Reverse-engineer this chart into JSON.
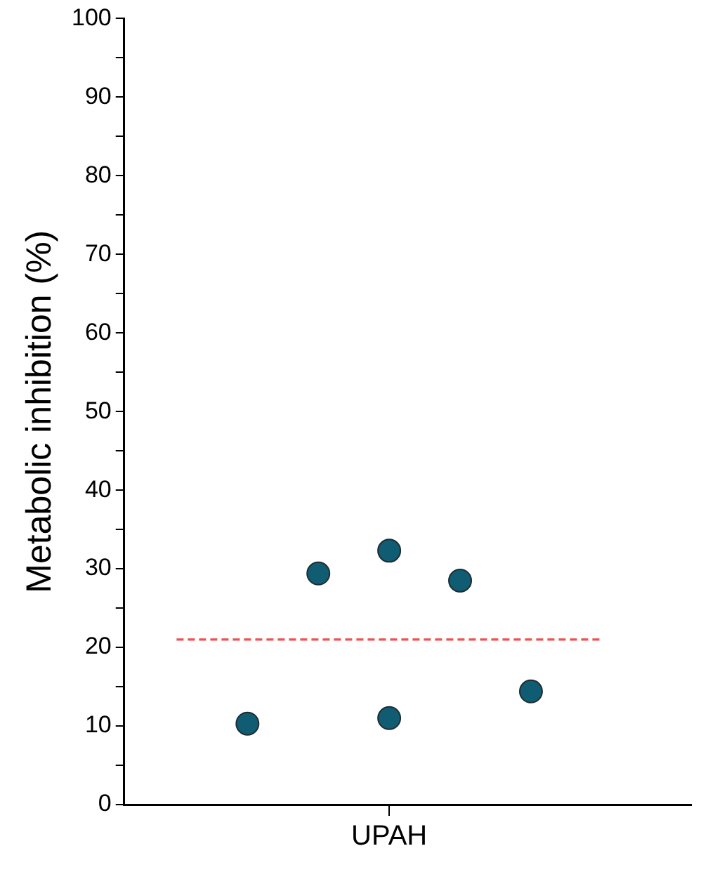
{
  "chart_data": {
    "type": "scatter",
    "ylabel": "Metabolic inhibition (%)",
    "categories": [
      null,
      null,
      null,
      "UPAH",
      null,
      null,
      null
    ],
    "ylim": [
      0,
      100
    ],
    "yticks": [
      0,
      {
        "value": 5,
        "label": null
      },
      10,
      {
        "value": 15,
        "label": null
      },
      20,
      {
        "value": 25,
        "label": null
      },
      30,
      {
        "value": 35,
        "label": null
      },
      40,
      {
        "value": 45,
        "label": null
      },
      50,
      {
        "value": 55,
        "label": null
      },
      60,
      {
        "value": 65,
        "label": null
      },
      70,
      {
        "value": 75,
        "label": null
      },
      80,
      {
        "value": 85,
        "label": null
      },
      90,
      {
        "value": 95,
        "label": null
      },
      100
    ],
    "grid": false,
    "legend": false,
    "marker": "circle",
    "series": [
      {
        "color": "#0f5c73",
        "values": [
          null,
          10.3,
          29.4,
          32.3,
          28.5,
          14.4,
          null
        ]
      },
      {
        "color": "#0f5c73",
        "values": [
          null,
          null,
          null,
          11.0,
          null,
          null,
          null
        ]
      },
      {
        "type": "line",
        "color": "#f0504f",
        "line_style": "dashed",
        "marker": "none",
        "values": [
          21,
          21,
          21,
          21,
          21,
          21,
          21
        ]
      }
    ]
  }
}
